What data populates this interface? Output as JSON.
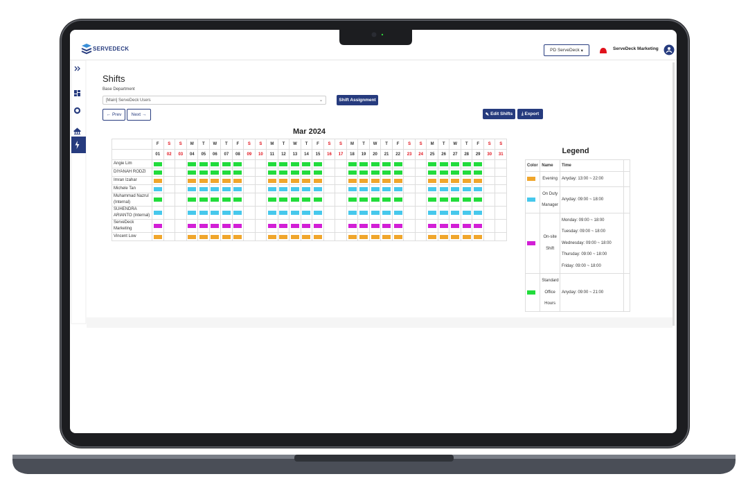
{
  "header": {
    "logo": "SERVEDECK",
    "org_select": "PD ServeDeck",
    "user": "ServeDeck Marketing"
  },
  "page": {
    "title": "Shifts",
    "dept_label": "Base Department",
    "dept_select": "[Main] ServeDeck Users",
    "assign_button": "Shift Assignment",
    "prev_button": "Prev",
    "next_button": "Next",
    "edit_button": "Edit Shifts",
    "export_button": "Export"
  },
  "calendar": {
    "title": "Mar 2024",
    "weekdays": [
      "F",
      "S",
      "S",
      "M",
      "T",
      "W",
      "T",
      "F",
      "S",
      "S",
      "M",
      "T",
      "W",
      "T",
      "F",
      "S",
      "S",
      "M",
      "T",
      "W",
      "T",
      "F",
      "S",
      "S",
      "M",
      "T",
      "W",
      "T",
      "F",
      "S",
      "S"
    ],
    "dates": [
      "01",
      "02",
      "03",
      "04",
      "05",
      "06",
      "07",
      "08",
      "09",
      "10",
      "11",
      "12",
      "13",
      "14",
      "15",
      "16",
      "17",
      "18",
      "19",
      "20",
      "21",
      "22",
      "23",
      "24",
      "25",
      "26",
      "27",
      "28",
      "29",
      "30",
      "31"
    ],
    "employees": [
      {
        "name": "Angie Lim",
        "shift": "Standard Office Hours"
      },
      {
        "name": "DIYANAH RODZI",
        "shift": "Standard Office Hours"
      },
      {
        "name": "Imran Izahar",
        "shift": "Evening"
      },
      {
        "name": "Michele Tan",
        "shift": "On Duty Manager"
      },
      {
        "name": "Muhammad Nazrul (Internal)",
        "shift": "Standard Office Hours"
      },
      {
        "name": "SUHENDRA ARIANTO (Internal)",
        "shift": "On Duty Manager"
      },
      {
        "name": "ServeDeck Marketing",
        "shift": "On-site Shift"
      },
      {
        "name": "Vincent Low",
        "shift": "Evening"
      }
    ]
  },
  "legend": {
    "title": "Legend",
    "headers": [
      "Color",
      "Name",
      "Time"
    ],
    "rows": [
      {
        "name": "Evening",
        "color": "#f0a62c",
        "times": [
          "Anyday: 13:00 ~ 22:00"
        ]
      },
      {
        "name": "On Duty Manager",
        "color": "#46c8ec",
        "times": [
          "Anyday: 09:00 ~ 18:00"
        ]
      },
      {
        "name": "On-site Shift",
        "color": "#d21fd6",
        "times": [
          "Monday: 09:00 ~ 18:00",
          "Tuesday: 09:00 ~ 18:00",
          "Wednesday: 09:00 ~ 18:00",
          "Thursday: 09:00 ~ 18:00",
          "Friday: 09:00 ~ 18:00"
        ]
      },
      {
        "name": "Standard Office Hours",
        "color": "#22dc3c",
        "times": [
          "Anyday: 09:00 ~ 21:00"
        ]
      }
    ]
  }
}
